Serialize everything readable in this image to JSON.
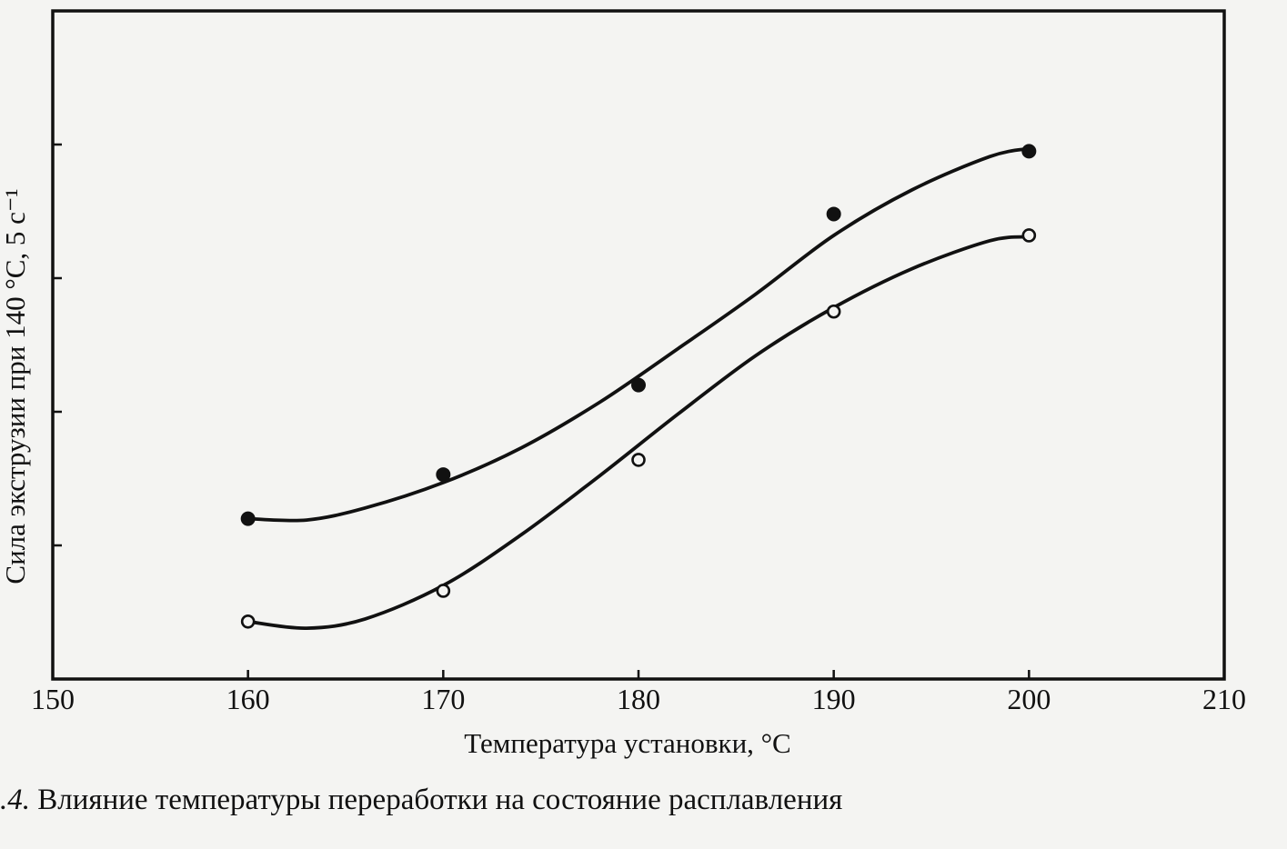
{
  "chart_data": {
    "type": "line",
    "title": "",
    "xlabel": "Температура установки, °C",
    "ylabel": "Сила экструзии при 140 °C, 5 с⁻¹",
    "xlim": [
      150,
      210
    ],
    "ylim": [
      0,
      5
    ],
    "x_ticks": [
      "150",
      "160",
      "170",
      "180",
      "190",
      "200",
      "210"
    ],
    "y_tick_count": 4,
    "grid": false,
    "legend": "none",
    "series": [
      {
        "marker": "filled-circle",
        "x": [
          160,
          170,
          180,
          190,
          200
        ],
        "y": [
          1.2,
          1.53,
          2.2,
          3.48,
          3.95
        ],
        "fit": [
          [
            160,
            1.2
          ],
          [
            163,
            1.19
          ],
          [
            166,
            1.28
          ],
          [
            170,
            1.47
          ],
          [
            174,
            1.73
          ],
          [
            178,
            2.07
          ],
          [
            182,
            2.47
          ],
          [
            186,
            2.88
          ],
          [
            190,
            3.32
          ],
          [
            194,
            3.66
          ],
          [
            198,
            3.91
          ],
          [
            200,
            3.97
          ]
        ]
      },
      {
        "marker": "open-circle",
        "x": [
          160,
          170,
          180,
          190,
          200
        ],
        "y": [
          0.43,
          0.66,
          1.64,
          2.75,
          3.32
        ],
        "fit": [
          [
            160,
            0.43
          ],
          [
            163,
            0.38
          ],
          [
            166,
            0.45
          ],
          [
            170,
            0.7
          ],
          [
            174,
            1.08
          ],
          [
            178,
            1.52
          ],
          [
            182,
            1.98
          ],
          [
            186,
            2.42
          ],
          [
            190,
            2.78
          ],
          [
            194,
            3.07
          ],
          [
            198,
            3.28
          ],
          [
            200,
            3.31
          ]
        ]
      }
    ]
  },
  "caption": {
    "number": ".4.",
    "text": " Влияние температуры переработки на состояние расплавления"
  }
}
